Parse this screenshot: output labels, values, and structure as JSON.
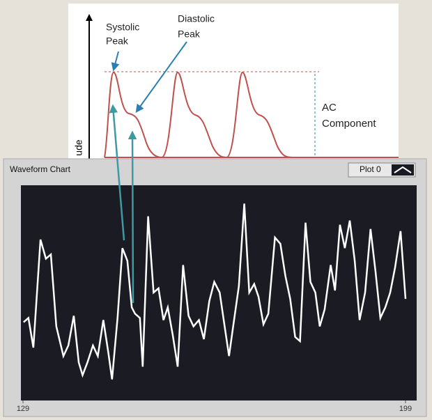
{
  "diagram": {
    "systolic_label": [
      "Systolic",
      "Peak"
    ],
    "diastolic_label": [
      "Diastolic",
      "Peak"
    ],
    "ac_label": [
      "AC",
      "Component"
    ],
    "axis_label": "ude"
  },
  "window": {
    "title": "Waveform Chart",
    "plot_legend": "Plot 0"
  },
  "chart_data": {
    "type": "line",
    "color": "#ffffff",
    "x": [
      129.1,
      130.0,
      130.9,
      132.2,
      133.2,
      134.1,
      135.1,
      136.4,
      137.3,
      138.3,
      139.2,
      139.9,
      140.8,
      141.8,
      142.7,
      143.7,
      144.6,
      145.3,
      146.3,
      147.2,
      148.1,
      148.9,
      149.5,
      150.4,
      150.9,
      151.9,
      152.9,
      153.8,
      154.7,
      155.5,
      156.4,
      157.3,
      158.3,
      159.3,
      160.2,
      161.2,
      162.1,
      163.1,
      164.0,
      165.0,
      165.9,
      166.7,
      167.4,
      168.5,
      169.5,
      170.4,
      171.3,
      172.1,
      173.0,
      173.9,
      175.1,
      176.1,
      177.0,
      177.9,
      178.8,
      179.7,
      180.7,
      181.6,
      182.5,
      183.3,
      184.2,
      185.3,
      186.1,
      187.0,
      187.9,
      188.8,
      189.7,
      190.6,
      191.6,
      192.6,
      193.5,
      194.4,
      195.3,
      196.2,
      197.1,
      198.1,
      199.0
    ],
    "values": [
      36,
      38,
      24,
      75,
      66,
      68,
      34,
      20,
      25,
      39,
      17,
      11,
      17,
      25,
      20,
      37,
      22,
      9,
      38,
      71,
      65,
      43,
      40,
      38,
      15,
      86,
      50,
      52,
      37,
      43,
      30,
      15,
      63,
      39,
      34,
      37,
      28,
      46,
      55,
      50,
      34,
      20,
      33,
      53,
      92,
      50,
      54,
      48,
      35,
      40,
      76,
      73,
      58,
      47,
      29,
      27,
      83,
      55,
      50,
      34,
      42,
      63,
      51,
      82,
      71,
      84,
      65,
      37,
      50,
      80,
      60,
      38,
      43,
      50,
      62,
      79,
      47
    ],
    "xlim": [
      129,
      199
    ],
    "xticks": [
      129,
      199
    ],
    "ylim": [
      0,
      100
    ]
  }
}
